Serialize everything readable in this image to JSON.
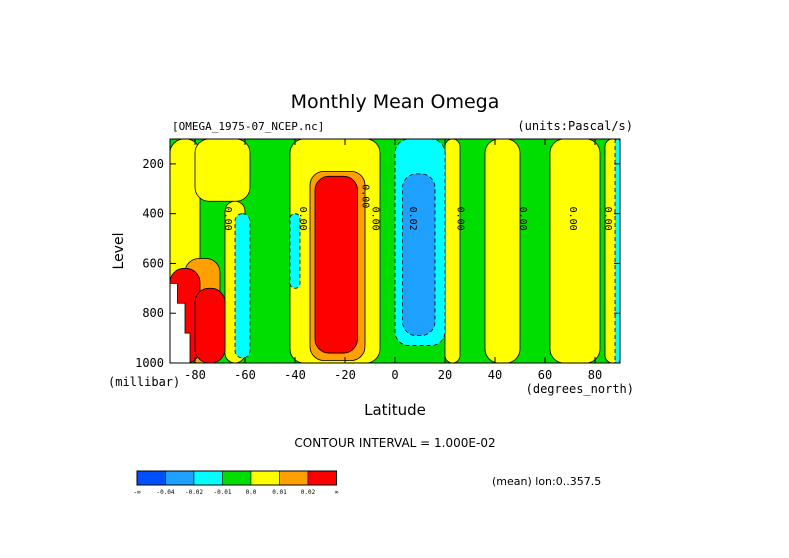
{
  "chart_data": {
    "type": "heatmap",
    "title": "Monthly Mean Omega",
    "source_label": "[OMEGA_1975-07_NCEP.nc]",
    "units_label": "(units:Pascal/s)",
    "xlabel": "Latitude",
    "x_unit_label": "(degrees_north)",
    "ylabel": "Level",
    "y_unit_label": "(millibar)",
    "xlim": [
      -90,
      90
    ],
    "ylim": [
      1000,
      100
    ],
    "x_ticks": [
      -80,
      -60,
      -40,
      -20,
      0,
      20,
      40,
      60,
      80
    ],
    "y_ticks": [
      200,
      400,
      600,
      800,
      1000
    ],
    "contour_interval_text": "CONTOUR INTERVAL = 1.000E-02",
    "mean_note": "(mean) lon:0..357.5",
    "colorbar": {
      "labels": [
        "-∞",
        "-0.04",
        "-0.02",
        "-0.01",
        "0.0",
        "0.01",
        "0.02",
        "∞"
      ],
      "colors": [
        "#0050ff",
        "#1ea0ff",
        "#00ffff",
        "#00dd00",
        "#ffff00",
        "#ffa000",
        "#ff0000"
      ]
    },
    "colors": {
      "background": "#00dd00",
      "positive_weak": "#ffff00",
      "positive_mid": "#ffa000",
      "positive_strong": "#ff0000",
      "positive_extreme": "#c80000",
      "negative_weak": "#00ffff",
      "negative_mid": "#1ea0ff",
      "missing": "#ffffff"
    },
    "regions": [
      {
        "value": 0.005,
        "level": "positive_weak",
        "lat": [
          -90,
          -78
        ],
        "p": [
          100,
          1000
        ]
      },
      {
        "value": 0.005,
        "level": "positive_weak",
        "lat": [
          -80,
          -58
        ],
        "p": [
          100,
          350
        ]
      },
      {
        "value": 0.005,
        "level": "positive_weak",
        "lat": [
          -68,
          -60
        ],
        "p": [
          350,
          1000
        ]
      },
      {
        "value": 0.005,
        "level": "positive_weak",
        "lat": [
          -42,
          -6
        ],
        "p": [
          100,
          1000
        ]
      },
      {
        "value": 0.015,
        "level": "positive_mid",
        "lat": [
          -34,
          -12
        ],
        "p": [
          230,
          990
        ]
      },
      {
        "value": 0.025,
        "level": "positive_strong",
        "lat": [
          -32,
          -15
        ],
        "p": [
          250,
          960
        ]
      },
      {
        "value": 0.005,
        "level": "positive_weak",
        "lat": [
          20,
          26
        ],
        "p": [
          100,
          1000
        ]
      },
      {
        "value": 0.005,
        "level": "positive_weak",
        "lat": [
          36,
          50
        ],
        "p": [
          100,
          1000
        ]
      },
      {
        "value": 0.005,
        "level": "positive_weak",
        "lat": [
          62,
          82
        ],
        "p": [
          100,
          1000
        ]
      },
      {
        "value": 0.005,
        "level": "positive_weak",
        "lat": [
          84,
          90
        ],
        "p": [
          100,
          1000
        ]
      },
      {
        "value": 0.015,
        "level": "positive_mid",
        "lat": [
          -84,
          -70
        ],
        "p": [
          580,
          1000
        ]
      },
      {
        "value": 0.025,
        "level": "positive_strong",
        "lat": [
          -90,
          -78
        ],
        "p": [
          620,
          1000
        ]
      },
      {
        "value": 0.025,
        "level": "positive_strong",
        "lat": [
          -80,
          -68
        ],
        "p": [
          700,
          1000
        ]
      },
      {
        "value": -0.015,
        "level": "negative_weak",
        "lat": [
          -64,
          -58
        ],
        "p": [
          400,
          980
        ]
      },
      {
        "value": -0.015,
        "level": "negative_weak",
        "lat": [
          -42,
          -38
        ],
        "p": [
          400,
          700
        ]
      },
      {
        "value": -0.015,
        "level": "negative_weak",
        "lat": [
          0,
          20
        ],
        "p": [
          100,
          930
        ]
      },
      {
        "value": -0.03,
        "level": "negative_mid",
        "lat": [
          3,
          16
        ],
        "p": [
          240,
          890
        ]
      },
      {
        "value": -0.015,
        "level": "negative_weak",
        "lat": [
          88,
          90
        ],
        "p": [
          100,
          1000
        ]
      }
    ],
    "contour_labels": [
      {
        "text": "0.00",
        "lat": -68,
        "p": 420
      },
      {
        "text": "0.00",
        "lat": -38,
        "p": 420
      },
      {
        "text": "0.00",
        "lat": -9,
        "p": 420
      },
      {
        "text": "0.00",
        "lat": -13,
        "p": 330
      },
      {
        "text": "0.02",
        "lat": 6,
        "p": 420
      },
      {
        "text": "0.00",
        "lat": 25,
        "p": 420
      },
      {
        "text": "0.00",
        "lat": 50,
        "p": 420
      },
      {
        "text": "0.00",
        "lat": 70,
        "p": 420
      },
      {
        "text": "0.00",
        "lat": 84,
        "p": 420
      }
    ]
  }
}
